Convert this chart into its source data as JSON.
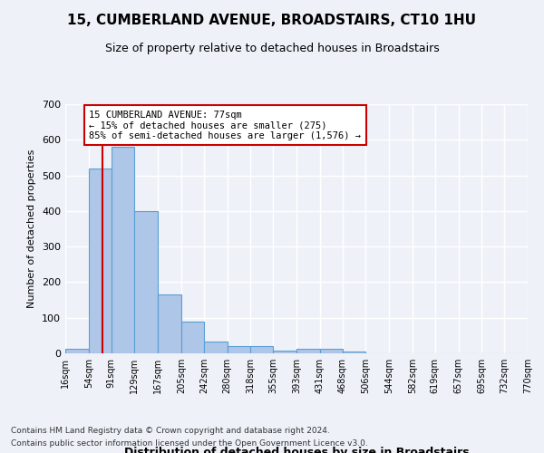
{
  "title": "15, CUMBERLAND AVENUE, BROADSTAIRS, CT10 1HU",
  "subtitle": "Size of property relative to detached houses in Broadstairs",
  "xlabel": "Distribution of detached houses by size in Broadstairs",
  "ylabel": "Number of detached properties",
  "bin_edges": [
    16,
    54,
    91,
    129,
    167,
    205,
    242,
    280,
    318,
    355,
    393,
    431,
    468,
    506,
    544,
    582,
    619,
    657,
    695,
    732,
    770
  ],
  "bin_labels": [
    "16sqm",
    "54sqm",
    "91sqm",
    "129sqm",
    "167sqm",
    "205sqm",
    "242sqm",
    "280sqm",
    "318sqm",
    "355sqm",
    "393sqm",
    "431sqm",
    "468sqm",
    "506sqm",
    "544sqm",
    "582sqm",
    "619sqm",
    "657sqm",
    "695sqm",
    "732sqm",
    "770sqm"
  ],
  "bar_heights": [
    12,
    520,
    580,
    400,
    165,
    88,
    32,
    20,
    20,
    8,
    12,
    12,
    5,
    0,
    0,
    0,
    0,
    0,
    0,
    0
  ],
  "bar_color": "#aec6e8",
  "bar_edge_color": "#5a9fd4",
  "property_size": 77,
  "vline_color": "#cc0000",
  "ylim": [
    0,
    700
  ],
  "yticks": [
    0,
    100,
    200,
    300,
    400,
    500,
    600,
    700
  ],
  "annotation_line1": "15 CUMBERLAND AVENUE: 77sqm",
  "annotation_line2": "← 15% of detached houses are smaller (275)",
  "annotation_line3": "85% of semi-detached houses are larger (1,576) →",
  "annotation_box_color": "#ffffff",
  "annotation_border_color": "#cc0000",
  "footer1": "Contains HM Land Registry data © Crown copyright and database right 2024.",
  "footer2": "Contains public sector information licensed under the Open Government Licence v3.0.",
  "background_color": "#eef2f8",
  "grid_color": "#ffffff"
}
